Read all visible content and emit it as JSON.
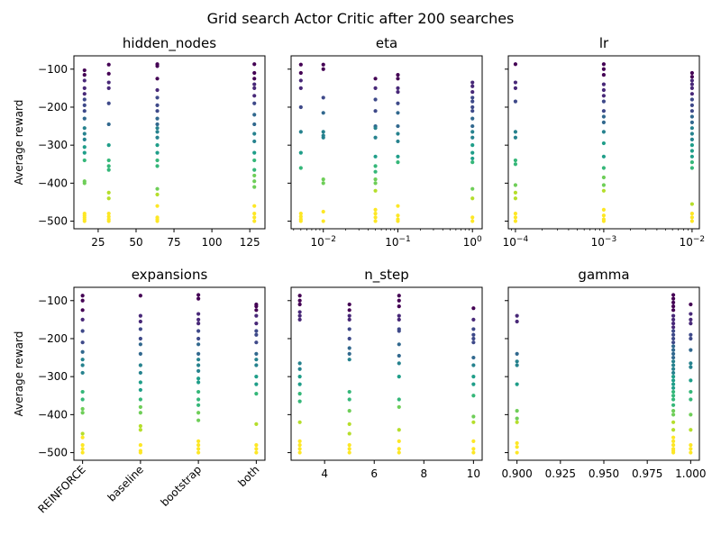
{
  "title": "Grid search Actor Critic after 200 searches",
  "colors": {
    "axis": "#000000",
    "colormap": "viridis"
  },
  "chart_data": [
    {
      "type": "scatter",
      "title": "hidden_nodes",
      "xlabel": "",
      "ylabel": "Average reward",
      "xscale": "linear",
      "xlim": [
        9,
        135
      ],
      "ylim": [
        -520,
        -65
      ],
      "xticks": [
        25,
        50,
        75,
        100,
        125
      ],
      "xticklabels": [
        "25",
        "50",
        "75",
        "100",
        "125"
      ],
      "yticks": [
        -100,
        -200,
        -300,
        -400,
        -500
      ],
      "yticklabels": [
        "−100",
        "−200",
        "−300",
        "−400",
        "−500"
      ],
      "points": [
        {
          "x": 16,
          "y": [
            -103,
            -115,
            -130,
            -150,
            -165,
            -180,
            -195,
            -210,
            -230,
            -255,
            -270,
            -285,
            -305,
            -320,
            -340,
            -395,
            -400,
            -480,
            -485,
            -490,
            -495,
            -500
          ]
        },
        {
          "x": 32,
          "y": [
            -88,
            -112,
            -135,
            -150,
            -190,
            -245,
            -300,
            -340,
            -355,
            -365,
            -425,
            -440,
            -480,
            -488,
            -495,
            -500
          ]
        },
        {
          "x": 64,
          "y": [
            -87,
            -92,
            -125,
            -155,
            -175,
            -195,
            -210,
            -230,
            -245,
            -255,
            -265,
            -280,
            -300,
            -320,
            -340,
            -355,
            -415,
            -430,
            -460,
            -490,
            -495,
            -500
          ]
        },
        {
          "x": 128,
          "y": [
            -87,
            -110,
            -125,
            -140,
            -150,
            -170,
            -190,
            -220,
            -245,
            -270,
            -290,
            -320,
            -340,
            -365,
            -380,
            -395,
            -410,
            -460,
            -480,
            -490,
            -500
          ]
        }
      ]
    },
    {
      "type": "scatter",
      "title": "eta",
      "xlabel": "",
      "ylabel": "",
      "xscale": "log",
      "xlim": [
        0.0037,
        1.35
      ],
      "ylim": [
        -520,
        -65
      ],
      "xticks": [
        0.01,
        0.1,
        1
      ],
      "xticklabels": [
        "10^-2",
        "10^-1",
        "10^0"
      ],
      "yticks": [
        -100,
        -200,
        -300,
        -400,
        -500
      ],
      "yticklabels": [],
      "points": [
        {
          "x": 0.005,
          "y": [
            -88,
            -110,
            -130,
            -150,
            -200,
            -265,
            -320,
            -360,
            -480,
            -488,
            -495,
            -500
          ]
        },
        {
          "x": 0.01,
          "y": [
            -88,
            -100,
            -175,
            -215,
            -265,
            -275,
            -280,
            -390,
            -400,
            -475,
            -500
          ]
        },
        {
          "x": 0.05,
          "y": [
            -125,
            -150,
            -180,
            -210,
            -250,
            -255,
            -280,
            -330,
            -355,
            -370,
            -390,
            -400,
            -420,
            -470,
            -480,
            -490,
            -500
          ]
        },
        {
          "x": 0.1,
          "y": [
            -115,
            -125,
            -150,
            -160,
            -190,
            -215,
            -250,
            -270,
            -290,
            -330,
            -345,
            -460,
            -485,
            -495,
            -500
          ]
        },
        {
          "x": 1,
          "y": [
            -135,
            -145,
            -160,
            -175,
            -185,
            -200,
            -210,
            -230,
            -250,
            -265,
            -280,
            -300,
            -320,
            -335,
            -345,
            -415,
            -440,
            -490,
            -500
          ]
        }
      ]
    },
    {
      "type": "scatter",
      "title": "lr",
      "xlabel": "",
      "ylabel": "",
      "xscale": "log",
      "xlim": [
        8.3e-05,
        0.0121
      ],
      "ylim": [
        -520,
        -65
      ],
      "xticks": [
        0.0001,
        0.001,
        0.01
      ],
      "xticklabels": [
        "10^-4",
        "10^-3",
        "10^-2"
      ],
      "yticks": [
        -100,
        -200,
        -300,
        -400,
        -500
      ],
      "yticklabels": [],
      "points": [
        {
          "x": 0.0001,
          "y": [
            -87,
            -135,
            -150,
            -185,
            -265,
            -280,
            -340,
            -350,
            -405,
            -425,
            -440,
            -480,
            -490,
            -500
          ]
        },
        {
          "x": 0.001,
          "y": [
            -87,
            -100,
            -115,
            -140,
            -155,
            -170,
            -185,
            -210,
            -225,
            -240,
            -265,
            -295,
            -330,
            -360,
            -385,
            -405,
            -420,
            -470,
            -485,
            -495,
            -500
          ]
        },
        {
          "x": 0.01,
          "y": [
            -110,
            -120,
            -130,
            -140,
            -150,
            -165,
            -180,
            -195,
            -210,
            -225,
            -240,
            -255,
            -270,
            -285,
            -300,
            -315,
            -330,
            -345,
            -360,
            -455,
            -480,
            -490,
            -500
          ]
        }
      ]
    },
    {
      "type": "scatter",
      "title": "expansions",
      "xlabel": "",
      "ylabel": "Average reward",
      "xscale": "categorical",
      "xlim": [
        -0.15,
        3.15
      ],
      "ylim": [
        -520,
        -65
      ],
      "categories": [
        "REINFORCE",
        "baseline",
        "bootstrap",
        "both"
      ],
      "yticks": [
        -100,
        -200,
        -300,
        -400,
        -500
      ],
      "yticklabels": [
        "−100",
        "−200",
        "−300",
        "−400",
        "−500"
      ],
      "points": [
        {
          "x": "REINFORCE",
          "y": [
            -87,
            -100,
            -125,
            -150,
            -180,
            -210,
            -235,
            -255,
            -270,
            -290,
            -340,
            -360,
            -385,
            -395,
            -450,
            -460,
            -480,
            -490,
            -500
          ]
        },
        {
          "x": "baseline",
          "y": [
            -87,
            -140,
            -155,
            -175,
            -200,
            -215,
            -240,
            -270,
            -290,
            -315,
            -335,
            -360,
            -380,
            -395,
            -430,
            -440,
            -480,
            -495,
            -500
          ]
        },
        {
          "x": "bootstrap",
          "y": [
            -85,
            -95,
            -135,
            -150,
            -160,
            -180,
            -200,
            -215,
            -240,
            -255,
            -270,
            -285,
            -305,
            -315,
            -340,
            -360,
            -375,
            -395,
            -415,
            -470,
            -480,
            -490,
            -500
          ]
        },
        {
          "x": "both",
          "y": [
            -110,
            -115,
            -125,
            -140,
            -160,
            -180,
            -190,
            -210,
            -240,
            -255,
            -270,
            -300,
            -320,
            -345,
            -425,
            -480,
            -490,
            -500
          ]
        }
      ]
    },
    {
      "type": "scatter",
      "title": "n_step",
      "xlabel": "",
      "ylabel": "",
      "xscale": "linear",
      "xlim": [
        2.65,
        10.35
      ],
      "ylim": [
        -520,
        -65
      ],
      "xticks": [
        4,
        6,
        8,
        10
      ],
      "xticklabels": [
        "4",
        "6",
        "8",
        "10"
      ],
      "yticks": [
        -100,
        -200,
        -300,
        -400,
        -500
      ],
      "yticklabels": [],
      "points": [
        {
          "x": 3,
          "y": [
            -87,
            -100,
            -110,
            -130,
            -140,
            -150,
            -265,
            -280,
            -300,
            -320,
            -345,
            -365,
            -420,
            -470,
            -480,
            -490,
            -500
          ]
        },
        {
          "x": 5,
          "y": [
            -110,
            -125,
            -140,
            -150,
            -175,
            -200,
            -225,
            -240,
            -255,
            -340,
            -360,
            -390,
            -425,
            -450,
            -480,
            -490,
            -500
          ]
        },
        {
          "x": 7,
          "y": [
            -87,
            -100,
            -115,
            -140,
            -150,
            -175,
            -180,
            -215,
            -245,
            -265,
            -300,
            -360,
            -380,
            -440,
            -470,
            -490,
            -500
          ]
        },
        {
          "x": 10,
          "y": [
            -120,
            -150,
            -175,
            -190,
            -200,
            -210,
            -250,
            -270,
            -300,
            -320,
            -350,
            -405,
            -420,
            -470,
            -490,
            -500
          ]
        }
      ]
    },
    {
      "type": "scatter",
      "title": "gamma",
      "xlabel": "",
      "ylabel": "",
      "xscale": "linear",
      "xlim": [
        0.895,
        1.005
      ],
      "ylim": [
        -520,
        -65
      ],
      "xticks": [
        0.9,
        0.925,
        0.95,
        0.975,
        1.0
      ],
      "xticklabels": [
        "0.900",
        "0.925",
        "0.950",
        "0.975",
        "1.000"
      ],
      "yticks": [
        -100,
        -200,
        -300,
        -400,
        -500
      ],
      "yticklabels": [],
      "points": [
        {
          "x": 0.9,
          "y": [
            -140,
            -155,
            -240,
            -260,
            -270,
            -320,
            -390,
            -410,
            -420,
            -475,
            -485,
            -500
          ]
        },
        {
          "x": 0.99,
          "y": [
            -85,
            -95,
            -105,
            -115,
            -125,
            -140,
            -150,
            -160,
            -170,
            -180,
            -190,
            -200,
            -210,
            -220,
            -230,
            -240,
            -250,
            -260,
            -270,
            -280,
            -290,
            -300,
            -310,
            -320,
            -330,
            -340,
            -350,
            -360,
            -375,
            -390,
            -400,
            -420,
            -440,
            -460,
            -470,
            -480,
            -490,
            -495,
            -500
          ]
        },
        {
          "x": 1.0,
          "y": [
            -110,
            -135,
            -150,
            -160,
            -190,
            -200,
            -230,
            -265,
            -275,
            -310,
            -340,
            -360,
            -400,
            -440,
            -480,
            -490,
            -500
          ]
        }
      ]
    }
  ]
}
